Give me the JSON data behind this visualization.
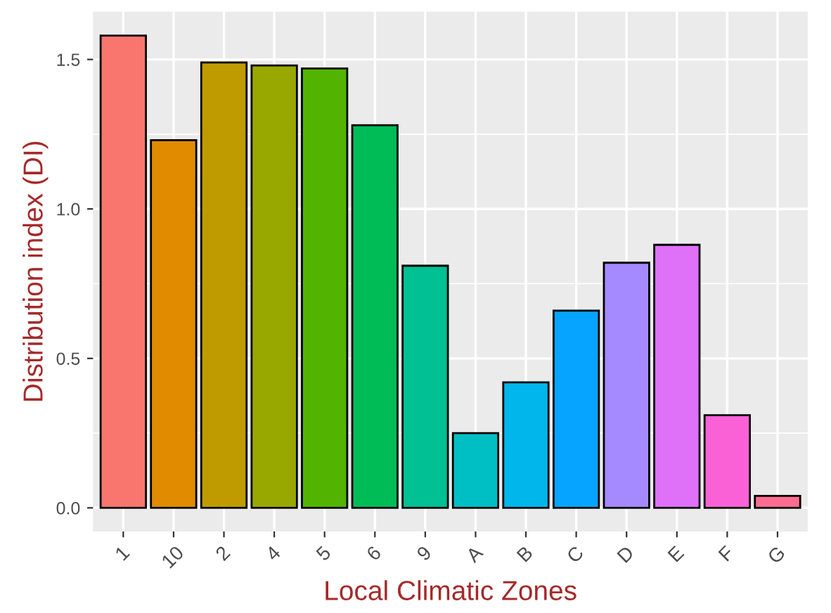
{
  "chart_data": {
    "type": "bar",
    "xlabel": "Local Climatic Zones",
    "ylabel": "Distribution index (DI)",
    "categories": [
      "1",
      "10",
      "2",
      "4",
      "5",
      "6",
      "9",
      "A",
      "B",
      "C",
      "D",
      "E",
      "F",
      "G"
    ],
    "values": [
      1.58,
      1.23,
      1.49,
      1.48,
      1.47,
      1.28,
      0.81,
      0.25,
      0.42,
      0.66,
      0.82,
      0.88,
      0.31,
      0.04
    ],
    "colors": [
      "#F8766D",
      "#E08B00",
      "#C09B00",
      "#99A800",
      "#53B400",
      "#00BC56",
      "#00C094",
      "#00BFC4",
      "#00B6EB",
      "#06A4FF",
      "#A58AFF",
      "#DF70F8",
      "#FB61D7",
      "#FF6C91"
    ],
    "ylim": [
      -0.079,
      1.66
    ],
    "yticks": [
      {
        "value": 0,
        "label": "0.0"
      },
      {
        "value": 0.5,
        "label": "0.5"
      },
      {
        "value": 1.0,
        "label": "1.0"
      },
      {
        "value": 1.5,
        "label": "1.5"
      }
    ],
    "grid": true,
    "legend": false
  }
}
